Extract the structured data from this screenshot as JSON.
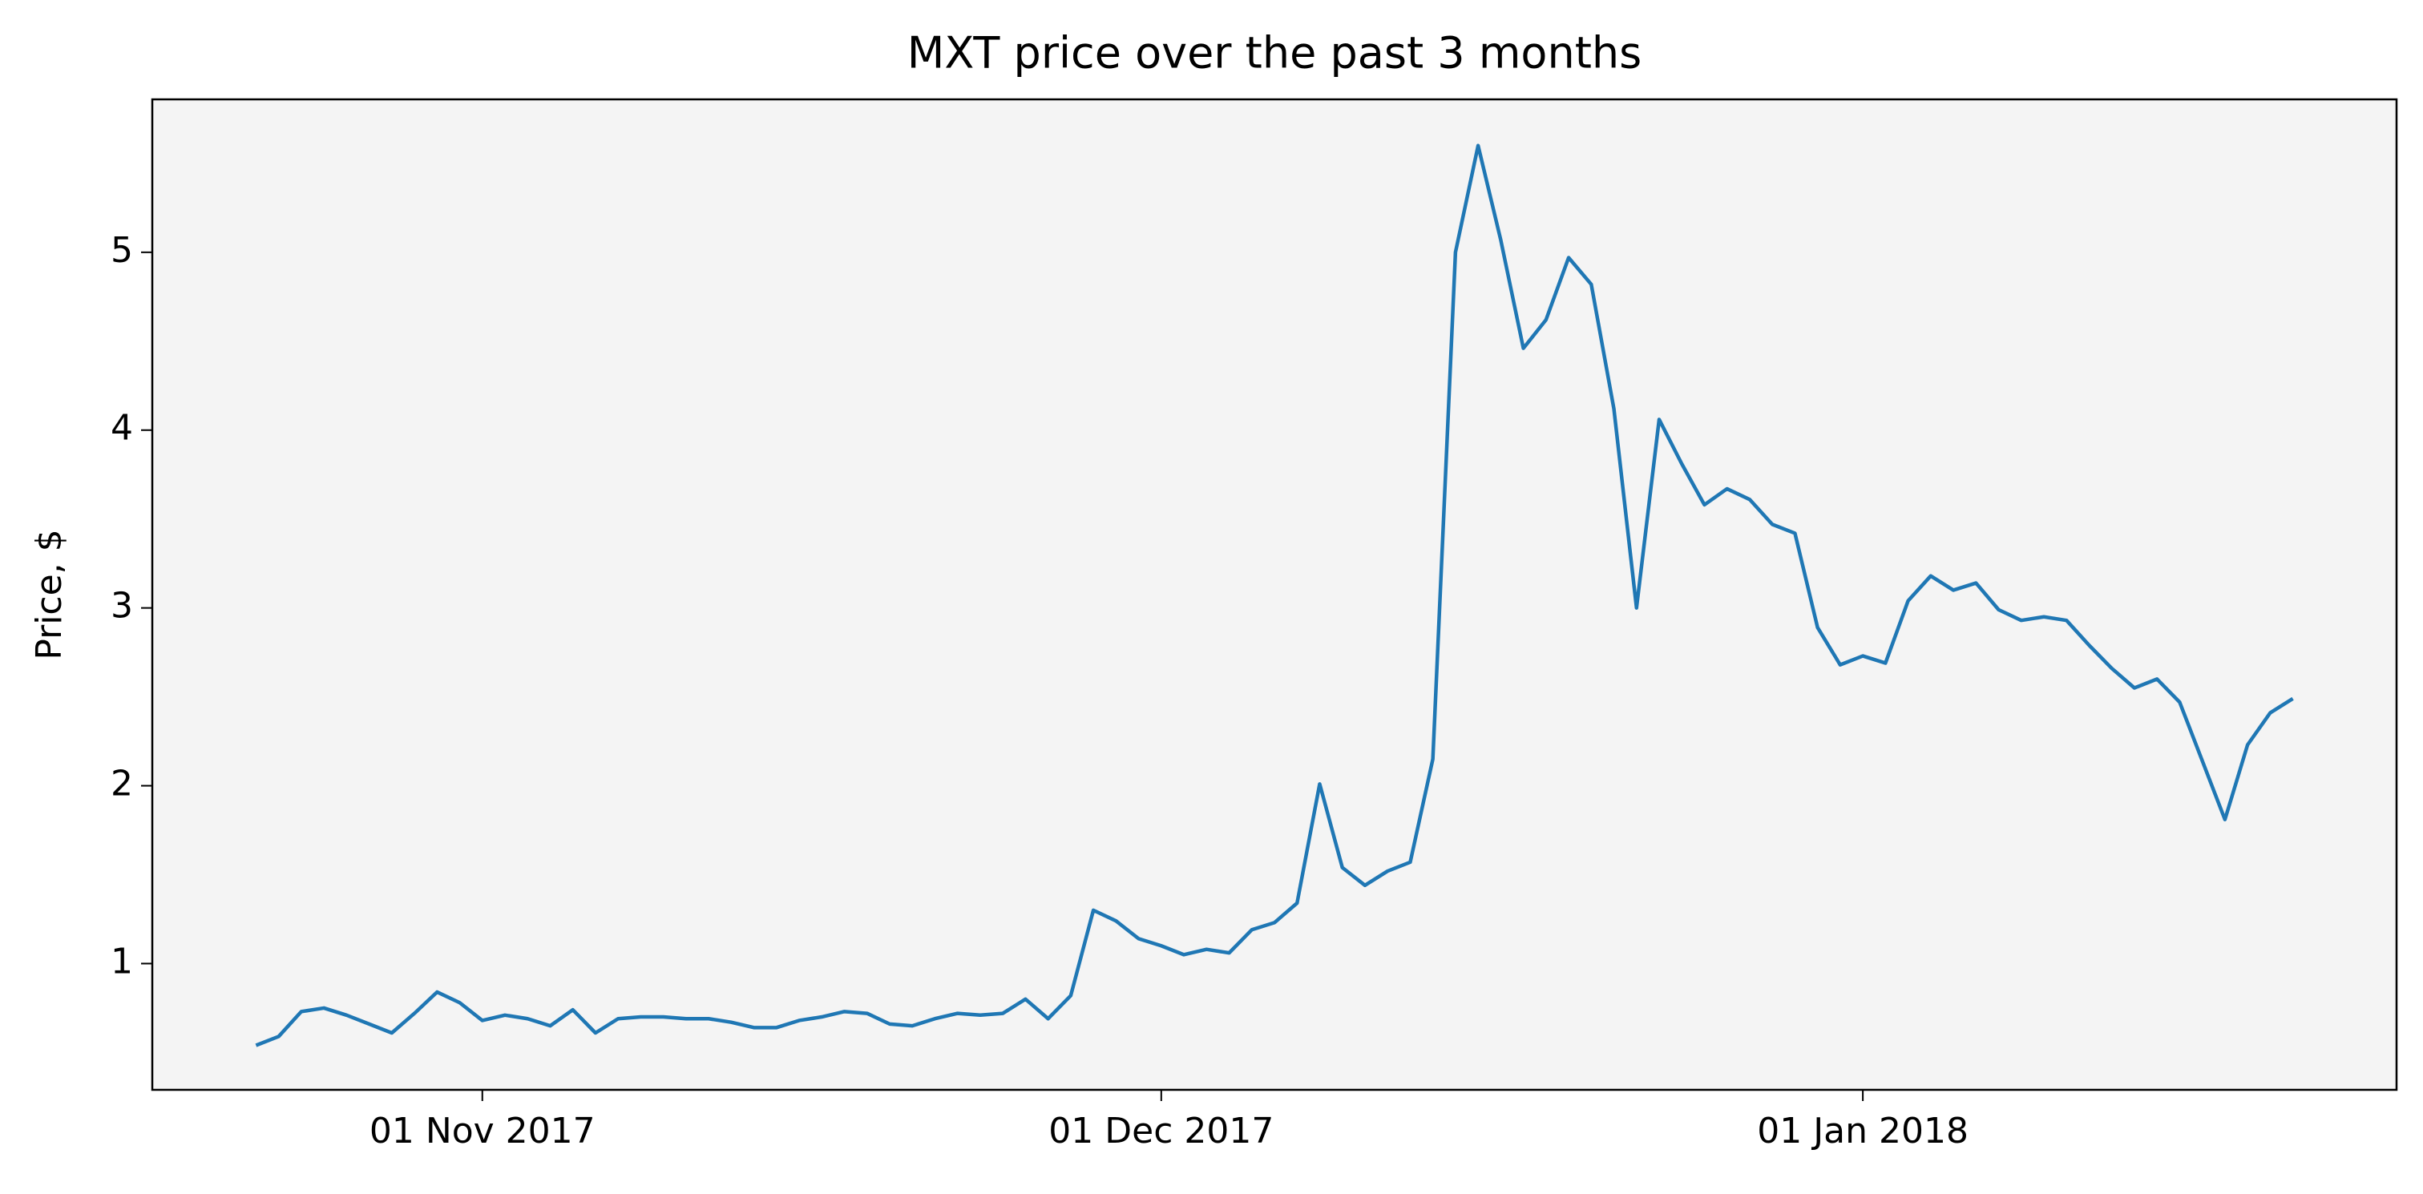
{
  "chart_data": {
    "type": "line",
    "title": "MXT price over the past 3 months",
    "y_label": "Price, $",
    "color": "#1f77b4",
    "background": "#f4f4f4",
    "x": [
      "2017-10-22",
      "2017-10-23",
      "2017-10-24",
      "2017-10-25",
      "2017-10-26",
      "2017-10-27",
      "2017-10-28",
      "2017-10-29",
      "2017-10-30",
      "2017-10-31",
      "2017-11-01",
      "2017-11-02",
      "2017-11-03",
      "2017-11-04",
      "2017-11-05",
      "2017-11-06",
      "2017-11-07",
      "2017-11-08",
      "2017-11-09",
      "2017-11-10",
      "2017-11-11",
      "2017-11-12",
      "2017-11-13",
      "2017-11-14",
      "2017-11-15",
      "2017-11-16",
      "2017-11-17",
      "2017-11-18",
      "2017-11-19",
      "2017-11-20",
      "2017-11-21",
      "2017-11-22",
      "2017-11-23",
      "2017-11-24",
      "2017-11-25",
      "2017-11-26",
      "2017-11-27",
      "2017-11-28",
      "2017-11-29",
      "2017-11-30",
      "2017-12-01",
      "2017-12-02",
      "2017-12-03",
      "2017-12-04",
      "2017-12-05",
      "2017-12-06",
      "2017-12-07",
      "2017-12-08",
      "2017-12-09",
      "2017-12-10",
      "2017-12-11",
      "2017-12-12",
      "2017-12-13",
      "2017-12-14",
      "2017-12-15",
      "2017-12-16",
      "2017-12-17",
      "2017-12-18",
      "2017-12-19",
      "2017-12-20",
      "2017-12-21",
      "2017-12-22",
      "2017-12-23",
      "2017-12-24",
      "2017-12-25",
      "2017-12-26",
      "2017-12-27",
      "2017-12-28",
      "2017-12-29",
      "2017-12-30",
      "2017-12-31",
      "2018-01-01",
      "2018-01-02",
      "2018-01-03",
      "2018-01-04",
      "2018-01-05",
      "2018-01-06",
      "2018-01-07",
      "2018-01-08",
      "2018-01-09",
      "2018-01-10",
      "2018-01-11",
      "2018-01-12",
      "2018-01-13",
      "2018-01-14",
      "2018-01-15",
      "2018-01-16",
      "2018-01-17",
      "2018-01-18",
      "2018-01-19",
      "2018-01-20"
    ],
    "values": [
      0.54,
      0.59,
      0.73,
      0.75,
      0.71,
      0.66,
      0.61,
      0.72,
      0.84,
      0.78,
      0.68,
      0.71,
      0.69,
      0.65,
      0.74,
      0.61,
      0.69,
      0.7,
      0.7,
      0.69,
      0.69,
      0.67,
      0.64,
      0.64,
      0.68,
      0.7,
      0.73,
      0.72,
      0.66,
      0.65,
      0.69,
      0.72,
      0.71,
      0.72,
      0.8,
      0.69,
      0.82,
      1.3,
      1.24,
      1.14,
      1.1,
      1.05,
      1.08,
      1.06,
      1.19,
      1.23,
      1.34,
      2.01,
      1.54,
      1.44,
      1.52,
      1.57,
      2.15,
      5.0,
      5.6,
      5.07,
      4.46,
      4.62,
      4.97,
      4.82,
      4.12,
      3.0,
      4.06,
      3.81,
      3.58,
      3.67,
      3.61,
      3.47,
      3.42,
      2.89,
      2.68,
      2.73,
      2.69,
      3.04,
      3.18,
      3.1,
      3.14,
      2.99,
      2.93,
      2.95,
      2.93,
      2.79,
      2.66,
      2.55,
      2.6,
      2.47,
      2.14,
      1.81,
      2.23,
      2.41,
      2.49
    ],
    "xlim": [
      "2017-10-17T10:00",
      "2018-01-24T14:00"
    ],
    "xticks": [
      {
        "value": "2017-11-01",
        "label": "01 Nov 2017"
      },
      {
        "value": "2017-12-01",
        "label": "01 Dec 2017"
      },
      {
        "value": "2018-01-01",
        "label": "01 Jan 2018"
      }
    ],
    "ylim": [
      0.29,
      5.86
    ],
    "yticks": [
      1,
      2,
      3,
      4,
      5
    ],
    "grid": false
  }
}
